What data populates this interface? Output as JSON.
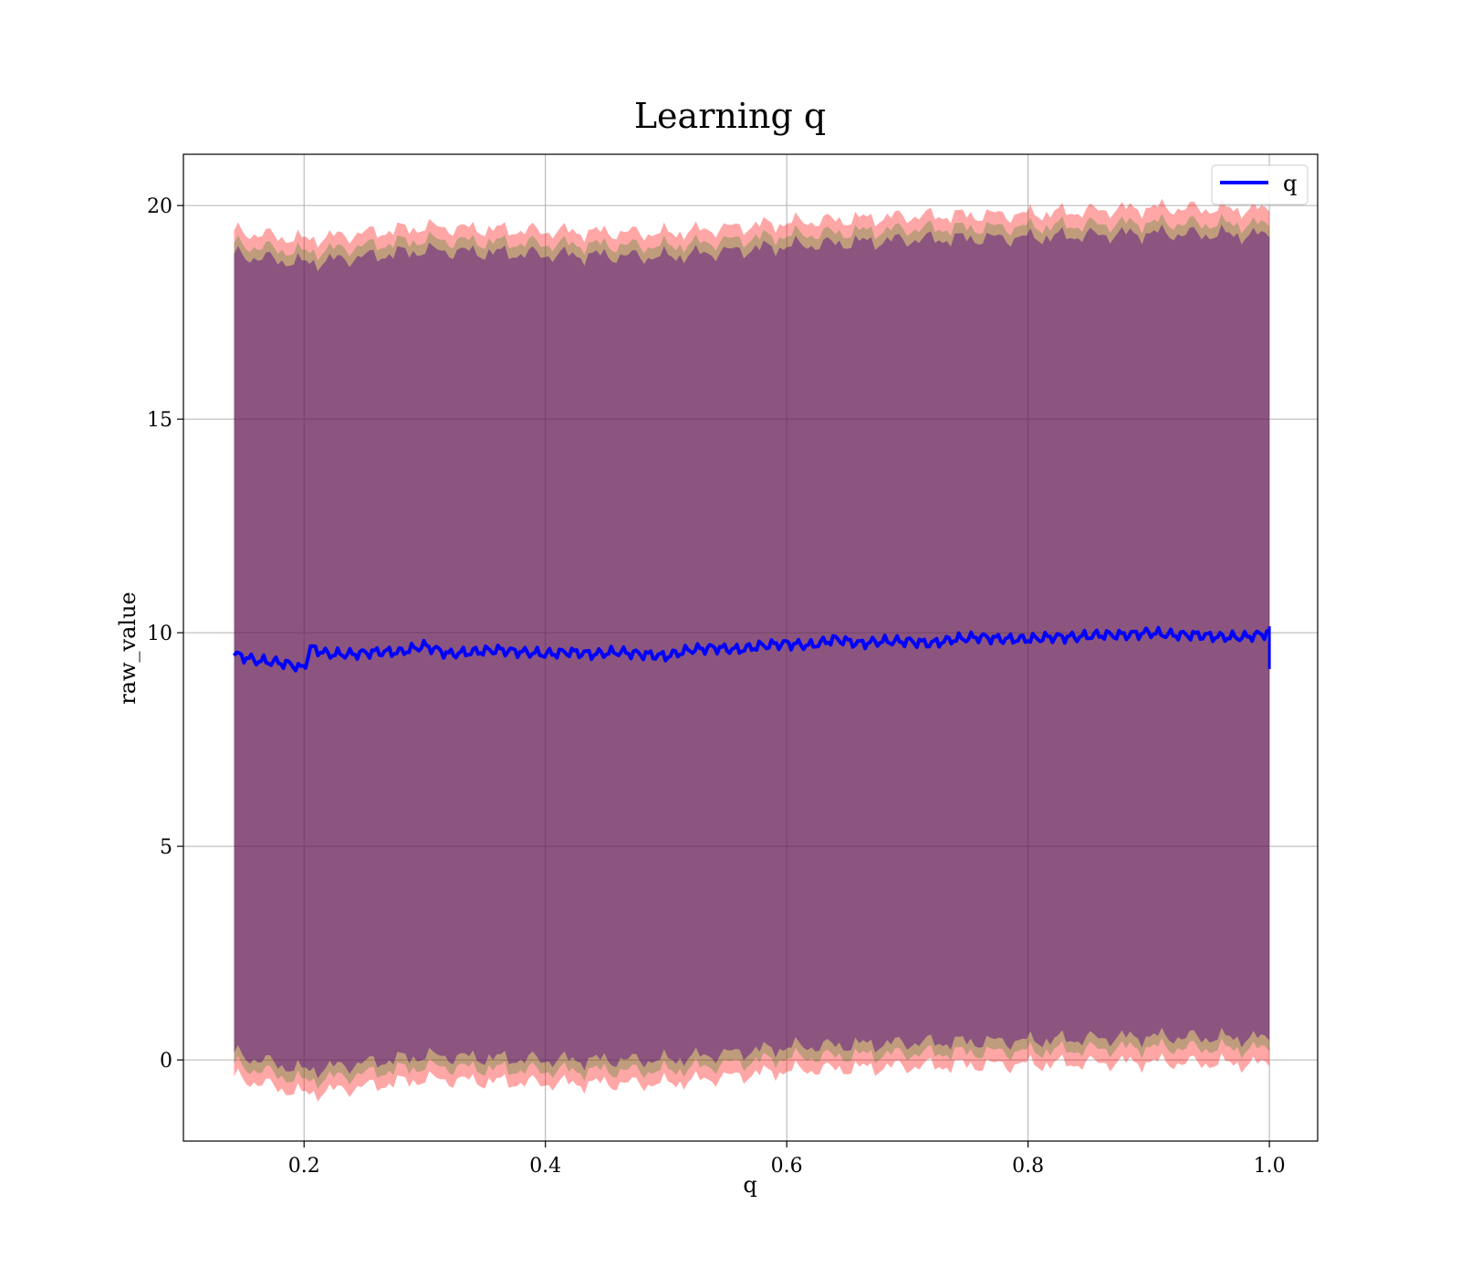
{
  "chart_data": {
    "type": "line",
    "title": "Learning q",
    "xlabel": "q",
    "ylabel": "raw_value",
    "xlim": [
      0.1,
      1.04
    ],
    "ylim": [
      -1.9,
      21.2
    ],
    "x_ticks": [
      0.2,
      0.4,
      0.6,
      0.8,
      1.0
    ],
    "x_tick_labels": [
      "0.2",
      "0.4",
      "0.6",
      "0.8",
      "1.0"
    ],
    "y_ticks": [
      0,
      5,
      10,
      15,
      20
    ],
    "y_tick_labels": [
      "0",
      "5",
      "10",
      "15",
      "20"
    ],
    "grid": true,
    "legend": {
      "position": "top-right",
      "entries": [
        "q"
      ]
    },
    "series": [
      {
        "name": "q",
        "color": "#0000ff",
        "x": [
          0.142,
          0.16,
          0.18,
          0.19,
          0.2,
          0.205,
          0.22,
          0.24,
          0.26,
          0.28,
          0.3,
          0.32,
          0.34,
          0.36,
          0.38,
          0.4,
          0.42,
          0.44,
          0.46,
          0.48,
          0.5,
          0.52,
          0.54,
          0.56,
          0.58,
          0.6,
          0.62,
          0.64,
          0.66,
          0.68,
          0.7,
          0.72,
          0.74,
          0.76,
          0.78,
          0.8,
          0.82,
          0.84,
          0.86,
          0.88,
          0.9,
          0.92,
          0.94,
          0.96,
          0.98,
          1.0
        ],
        "y": [
          9.5,
          9.35,
          9.3,
          9.25,
          9.15,
          9.65,
          9.5,
          9.5,
          9.55,
          9.55,
          9.7,
          9.5,
          9.55,
          9.6,
          9.55,
          9.5,
          9.55,
          9.5,
          9.55,
          9.5,
          9.45,
          9.6,
          9.65,
          9.6,
          9.7,
          9.75,
          9.7,
          9.85,
          9.75,
          9.8,
          9.8,
          9.75,
          9.85,
          9.9,
          9.85,
          9.85,
          9.9,
          9.9,
          9.95,
          9.95,
          10.0,
          9.95,
          9.95,
          9.9,
          9.9,
          10.0
        ]
      }
    ],
    "bands": [
      {
        "color": "#ff0000",
        "opacity": 0.35,
        "x": [
          0.142,
          0.2,
          0.3,
          0.4,
          0.5,
          0.6,
          0.7,
          0.8,
          0.9,
          1.0
        ],
        "upper": [
          19.4,
          19.2,
          19.5,
          19.4,
          19.35,
          19.6,
          19.75,
          19.8,
          19.95,
          19.9
        ],
        "lower": [
          -0.4,
          -0.8,
          -0.45,
          -0.55,
          -0.55,
          -0.25,
          -0.15,
          -0.1,
          -0.05,
          -0.1
        ]
      },
      {
        "color": "#008000",
        "opacity": 0.25,
        "x": [
          0.142,
          0.2,
          0.3,
          0.4,
          0.5,
          0.6,
          0.7,
          0.8,
          0.9,
          1.0
        ],
        "upper": [
          19.1,
          18.9,
          19.2,
          19.1,
          19.05,
          19.3,
          19.45,
          19.5,
          19.6,
          19.55
        ],
        "lower": [
          -0.1,
          -0.5,
          -0.15,
          -0.25,
          -0.25,
          0.05,
          0.15,
          0.2,
          0.3,
          0.25
        ]
      },
      {
        "color": "#4b0082",
        "opacity": 0.45,
        "x": [
          0.142,
          0.2,
          0.3,
          0.4,
          0.5,
          0.6,
          0.7,
          0.8,
          0.9,
          1.0
        ],
        "upper": [
          18.85,
          18.65,
          18.95,
          18.85,
          18.8,
          19.05,
          19.2,
          19.25,
          19.35,
          19.3
        ],
        "lower": [
          0.15,
          -0.25,
          0.1,
          0.0,
          0.0,
          0.3,
          0.4,
          0.45,
          0.55,
          0.5
        ]
      }
    ]
  }
}
